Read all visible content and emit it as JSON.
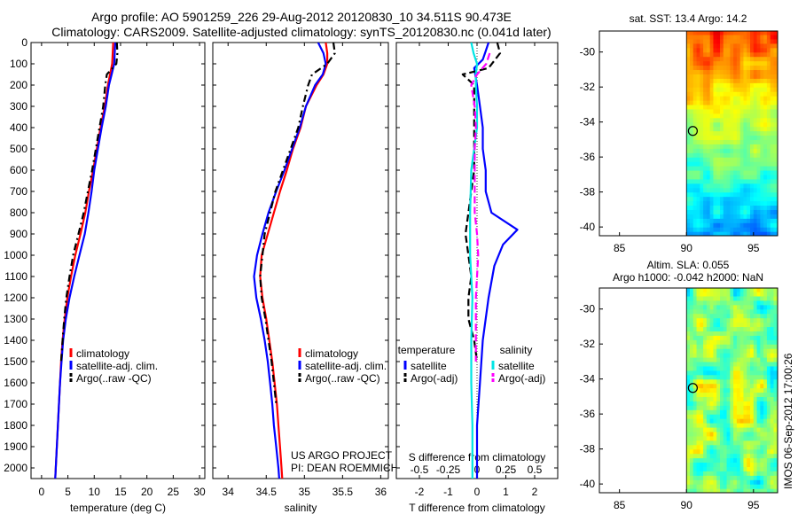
{
  "header": {
    "title_line1": "Argo profile: AO 5901259_226 29-Aug-2012 20120830_10 34.511S 90.473E",
    "title_line2": "Climatology: CARS2009. Satellite-adjusted climatology: synTS_20120830.nc (0.041d later)"
  },
  "side_label": "IMOS 06-Sep-2012 17:00:26",
  "colors": {
    "climatology": "#ff0000",
    "satellite": "#0000ff",
    "argo": "#000000",
    "sal_satellite": "#00e5e5",
    "sal_argo": "#ff00ff"
  },
  "chart_data": [
    {
      "id": "temperature",
      "type": "line",
      "xlabel": "temperature (deg C)",
      "ylabel": "",
      "xlim": [
        -2,
        31
      ],
      "ylim": [
        2050,
        0
      ],
      "xticks": [
        0,
        5,
        10,
        15,
        20,
        25,
        30
      ],
      "yticks": [
        0,
        100,
        200,
        300,
        400,
        500,
        600,
        700,
        800,
        900,
        1000,
        1100,
        1200,
        1300,
        1400,
        1500,
        1600,
        1700,
        1800,
        1900,
        2000
      ],
      "legend": [
        "climatology",
        "satellite-adj. clim.",
        "Argo(..raw -QC)"
      ],
      "series": [
        {
          "name": "climatology",
          "color": "#ff0000",
          "dash": "",
          "points": [
            [
              13.6,
              0
            ],
            [
              13.5,
              50
            ],
            [
              13.4,
              100
            ],
            [
              13.0,
              150
            ],
            [
              12.6,
              200
            ],
            [
              12.0,
              300
            ],
            [
              11.2,
              400
            ],
            [
              10.5,
              500
            ],
            [
              9.8,
              600
            ],
            [
              9.0,
              700
            ],
            [
              8.3,
              800
            ],
            [
              7.4,
              900
            ],
            [
              6.4,
              1000
            ],
            [
              5.6,
              1100
            ],
            [
              4.9,
              1200
            ],
            [
              4.4,
              1300
            ],
            [
              4.0,
              1400
            ],
            [
              3.7,
              1500
            ],
            [
              3.5,
              1600
            ],
            [
              3.3,
              1700
            ],
            [
              3.1,
              1800
            ],
            [
              2.9,
              1900
            ],
            [
              2.7,
              2000
            ],
            [
              2.6,
              2050
            ]
          ]
        },
        {
          "name": "satellite-adj. clim.",
          "color": "#0000ff",
          "dash": "",
          "points": [
            [
              14.0,
              0
            ],
            [
              13.9,
              50
            ],
            [
              13.8,
              100
            ],
            [
              13.3,
              150
            ],
            [
              12.8,
              200
            ],
            [
              12.2,
              300
            ],
            [
              11.4,
              400
            ],
            [
              10.7,
              500
            ],
            [
              10.0,
              600
            ],
            [
              9.5,
              700
            ],
            [
              8.9,
              800
            ],
            [
              8.2,
              900
            ],
            [
              7.2,
              1000
            ],
            [
              6.2,
              1100
            ],
            [
              5.3,
              1200
            ],
            [
              4.6,
              1300
            ],
            [
              4.1,
              1400
            ],
            [
              3.8,
              1500
            ],
            [
              3.5,
              1600
            ],
            [
              3.3,
              1700
            ],
            [
              3.1,
              1800
            ],
            [
              2.9,
              1900
            ],
            [
              2.7,
              2000
            ],
            [
              2.6,
              2050
            ]
          ]
        },
        {
          "name": "Argo(..raw -QC)",
          "color": "#000000",
          "dash": "8,4,2,4",
          "points": [
            [
              14.3,
              0
            ],
            [
              14.4,
              50
            ],
            [
              14.2,
              100
            ],
            [
              12.4,
              150
            ],
            [
              12.1,
              200
            ],
            [
              11.7,
              300
            ],
            [
              11.0,
              400
            ],
            [
              10.3,
              500
            ],
            [
              9.6,
              600
            ],
            [
              8.8,
              700
            ],
            [
              8.0,
              800
            ],
            [
              7.0,
              900
            ],
            [
              6.0,
              1000
            ],
            [
              5.3,
              1100
            ],
            [
              4.7,
              1200
            ],
            [
              4.3,
              1300
            ],
            [
              4.0,
              1400
            ],
            [
              3.7,
              1500
            ]
          ]
        }
      ]
    },
    {
      "id": "salinity",
      "type": "line",
      "xlabel": "salinity",
      "ylabel": "",
      "xlim": [
        33.8,
        36.1
      ],
      "ylim": [
        2050,
        0
      ],
      "xticks": [
        34,
        34.5,
        35,
        35.5,
        36
      ],
      "legend": [
        "climatology",
        "satellite-adj. clim.",
        "Argo(..raw -QC)"
      ],
      "annotation": [
        "US ARGO PROJECT",
        "PI: DEAN ROEMMICH"
      ],
      "series": [
        {
          "name": "climatology",
          "color": "#ff0000",
          "dash": "",
          "points": [
            [
              35.28,
              0
            ],
            [
              35.3,
              50
            ],
            [
              35.3,
              100
            ],
            [
              35.25,
              150
            ],
            [
              35.16,
              200
            ],
            [
              35.02,
              300
            ],
            [
              34.95,
              400
            ],
            [
              34.85,
              500
            ],
            [
              34.77,
              600
            ],
            [
              34.68,
              700
            ],
            [
              34.6,
              800
            ],
            [
              34.52,
              900
            ],
            [
              34.44,
              1000
            ],
            [
              34.42,
              1100
            ],
            [
              34.45,
              1200
            ],
            [
              34.5,
              1300
            ],
            [
              34.54,
              1400
            ],
            [
              34.58,
              1500
            ],
            [
              34.61,
              1600
            ],
            [
              34.64,
              1700
            ],
            [
              34.66,
              1800
            ],
            [
              34.68,
              1900
            ],
            [
              34.7,
              2000
            ],
            [
              34.71,
              2050
            ]
          ]
        },
        {
          "name": "satellite-adj. clim.",
          "color": "#0000ff",
          "dash": "",
          "points": [
            [
              35.18,
              0
            ],
            [
              35.25,
              50
            ],
            [
              35.28,
              100
            ],
            [
              35.24,
              150
            ],
            [
              35.14,
              200
            ],
            [
              35.02,
              300
            ],
            [
              34.94,
              400
            ],
            [
              34.84,
              500
            ],
            [
              34.74,
              600
            ],
            [
              34.63,
              700
            ],
            [
              34.53,
              800
            ],
            [
              34.45,
              900
            ],
            [
              34.38,
              1000
            ],
            [
              34.34,
              1100
            ],
            [
              34.37,
              1200
            ],
            [
              34.43,
              1300
            ],
            [
              34.48,
              1400
            ],
            [
              34.52,
              1500
            ],
            [
              34.55,
              1600
            ],
            [
              34.58,
              1700
            ],
            [
              34.6,
              1800
            ],
            [
              34.63,
              1900
            ],
            [
              34.66,
              2000
            ],
            [
              34.67,
              2050
            ]
          ]
        },
        {
          "name": "Argo(..raw -QC)",
          "color": "#000000",
          "dash": "8,4,2,4",
          "points": [
            [
              35.38,
              0
            ],
            [
              35.4,
              50
            ],
            [
              35.3,
              100
            ],
            [
              35.1,
              150
            ],
            [
              35.05,
              200
            ],
            [
              34.98,
              300
            ],
            [
              34.92,
              400
            ],
            [
              34.82,
              500
            ],
            [
              34.72,
              600
            ],
            [
              34.62,
              700
            ],
            [
              34.55,
              800
            ],
            [
              34.48,
              900
            ],
            [
              34.45,
              1000
            ],
            [
              34.42,
              1100
            ],
            [
              34.44,
              1200
            ],
            [
              34.49,
              1300
            ],
            [
              34.53,
              1400
            ],
            [
              34.57,
              1500
            ],
            [
              34.6,
              1600
            ],
            [
              34.63,
              1700
            ]
          ]
        }
      ]
    },
    {
      "id": "difference",
      "type": "line",
      "xlabel": "T difference from climatology",
      "toplabel": "S difference from climatology",
      "ylabel": "",
      "xlim": [
        -2.8,
        2.8
      ],
      "ylim": [
        2050,
        0
      ],
      "xticks": [
        -2,
        -1,
        0,
        1,
        2
      ],
      "sticks": [
        "-0.5",
        "-0.25",
        "0",
        "0.25",
        "0.5"
      ],
      "legend_headers": [
        "temperature",
        "salinity"
      ],
      "legend": [
        "satellite",
        "Argo(-adj)",
        "satellite",
        "Argo(-adj)"
      ],
      "series": [
        {
          "name": "temperature satellite",
          "color": "#0000ff",
          "dash": "",
          "points": [
            [
              0.4,
              0
            ],
            [
              0.3,
              40
            ],
            [
              0.2,
              80
            ],
            [
              -0.1,
              120
            ],
            [
              0.0,
              200
            ],
            [
              0.1,
              300
            ],
            [
              0.2,
              400
            ],
            [
              0.2,
              500
            ],
            [
              0.3,
              600
            ],
            [
              0.3,
              700
            ],
            [
              0.5,
              800
            ],
            [
              1.4,
              880
            ],
            [
              0.9,
              950
            ],
            [
              0.6,
              1050
            ],
            [
              0.4,
              1200
            ],
            [
              0.2,
              1400
            ],
            [
              0.1,
              1600
            ],
            [
              0.0,
              1800
            ],
            [
              0.0,
              2000
            ],
            [
              0.0,
              2050
            ]
          ]
        },
        {
          "name": "temperature Argo(-adj)",
          "color": "#000000",
          "dash": "8,4",
          "points": [
            [
              0.7,
              0
            ],
            [
              0.8,
              50
            ],
            [
              0.4,
              120
            ],
            [
              -0.5,
              150
            ],
            [
              -0.1,
              200
            ],
            [
              -0.1,
              300
            ],
            [
              -0.1,
              400
            ],
            [
              -0.1,
              500
            ],
            [
              -0.1,
              600
            ],
            [
              -0.2,
              700
            ],
            [
              -0.3,
              800
            ],
            [
              -0.4,
              900
            ],
            [
              -0.3,
              1000
            ],
            [
              -0.2,
              1100
            ],
            [
              -0.3,
              1200
            ],
            [
              -0.3,
              1300
            ],
            [
              -0.1,
              1400
            ],
            [
              0.0,
              1500
            ]
          ]
        },
        {
          "name": "salinity satellite",
          "color": "#00e5e5",
          "dash": "",
          "points": [
            [
              -0.05,
              0
            ],
            [
              -0.03,
              50
            ],
            [
              0.0,
              100
            ],
            [
              -0.01,
              150
            ],
            [
              -0.01,
              200
            ],
            [
              0.0,
              300
            ],
            [
              0.0,
              400
            ],
            [
              -0.05,
              600
            ],
            [
              -0.06,
              800
            ],
            [
              -0.06,
              1000
            ],
            [
              -0.04,
              1200
            ],
            [
              -0.05,
              1400
            ],
            [
              -0.05,
              1600
            ],
            [
              -0.04,
              1800
            ],
            [
              -0.04,
              2000
            ],
            [
              -0.04,
              2050
            ]
          ]
        },
        {
          "name": "salinity Argo(-adj)",
          "color": "#ff00ff",
          "dash": "8,4",
          "points": [
            [
              0.11,
              50
            ],
            [
              0.08,
              100
            ],
            [
              0.0,
              150
            ],
            [
              -0.05,
              200
            ],
            [
              -0.02,
              300
            ],
            [
              -0.01,
              400
            ],
            [
              -0.02,
              500
            ],
            [
              -0.02,
              600
            ],
            [
              -0.02,
              700
            ],
            [
              -0.02,
              800
            ],
            [
              0.0,
              900
            ],
            [
              0.01,
              1000
            ],
            [
              0.0,
              1100
            ],
            [
              -0.01,
              1200
            ],
            [
              -0.01,
              1300
            ],
            [
              -0.01,
              1400
            ],
            [
              -0.01,
              1500
            ]
          ]
        }
      ]
    },
    {
      "id": "sst_map",
      "type": "heatmap",
      "title": "sat. SST: 13.4  Argo: 14.2",
      "xlim": [
        83.5,
        96.8
      ],
      "ylim": [
        -40.5,
        -28.8
      ],
      "xticks": [
        85,
        90,
        95
      ],
      "yticks": [
        -30,
        -32,
        -34,
        -36,
        -38,
        -40
      ],
      "data_xlim": [
        90,
        96.8
      ],
      "marker": [
        90.473,
        -34.511
      ]
    },
    {
      "id": "sla_map",
      "type": "heatmap",
      "title_line1": "Altim. SLA: 0.055",
      "title_line2": "Argo h1000: -0.042 h2000: NaN",
      "xlim": [
        83.5,
        96.8
      ],
      "ylim": [
        -40.5,
        -28.8
      ],
      "xticks": [
        85,
        90,
        95
      ],
      "yticks": [
        -30,
        -32,
        -34,
        -36,
        -38,
        -40
      ],
      "data_xlim": [
        90,
        96.8
      ],
      "marker": [
        90.473,
        -34.511
      ]
    }
  ]
}
